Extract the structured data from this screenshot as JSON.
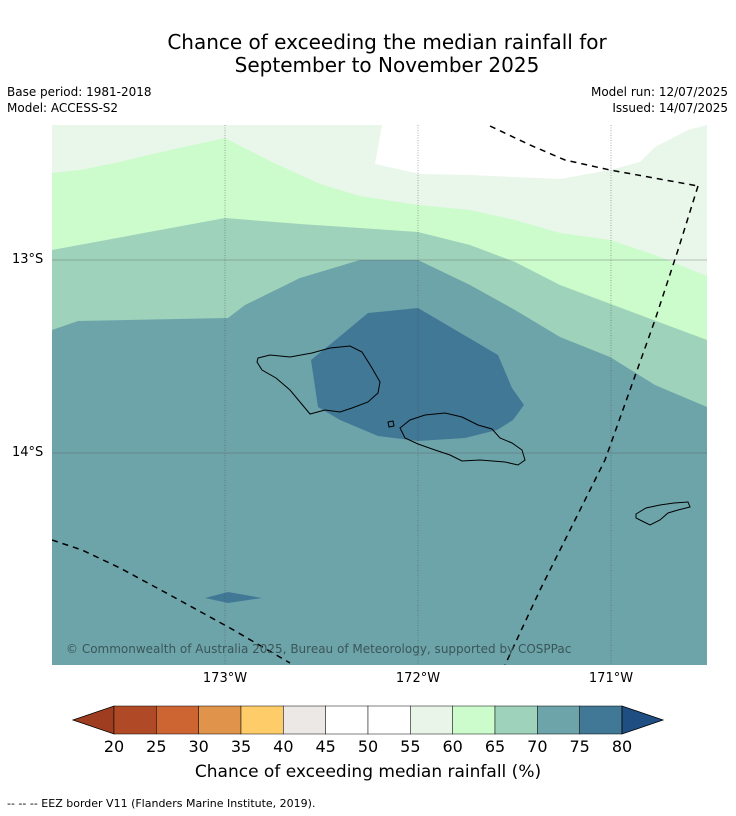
{
  "title": {
    "line1": "Chance of exceeding the median rainfall for",
    "line2": "September to November 2025"
  },
  "meta": {
    "base_period": "Base period: 1981-2018",
    "model": "Model: ACCESS-S2",
    "model_run": "Model run: 12/07/2025",
    "issued": "Issued: 14/07/2025"
  },
  "map": {
    "lat_labels": [
      "13°S",
      "14°S"
    ],
    "lon_labels": [
      "173°W",
      "172°W",
      "171°W"
    ],
    "copyright": "© Commonwealth of Australia 2025, Bureau of Meteorology, supported by COSPPac",
    "background_category": "70-75",
    "colors": {
      "c45_60": "#e8f5e8",
      "c55_60": "#e9f6ea",
      "c60_65": "#ccfccc",
      "c65_70": "#9ed2ba",
      "c70_75": "#6da4aa",
      "c75_80": "#417896",
      "eez_border": "#000000"
    }
  },
  "colorbar": {
    "title": "Chance of exceeding median rainfall (%)",
    "ticks": [
      "20",
      "25",
      "30",
      "35",
      "40",
      "45",
      "50",
      "55",
      "60",
      "65",
      "70",
      "75",
      "80"
    ],
    "colors": [
      "#b04a26",
      "#cd6533",
      "#e0934b",
      "#fecd6a",
      "#ece8e6",
      "#ffffff",
      "#ffffff",
      "#e8f5e8",
      "#ccfccc",
      "#9ed2ba",
      "#6da4aa",
      "#417896"
    ],
    "under_color": "#9f3d20",
    "over_color": "#1f4f82"
  },
  "footnote": "--  --  -- EEZ border V11 (Flanders Marine Institute, 2019)."
}
